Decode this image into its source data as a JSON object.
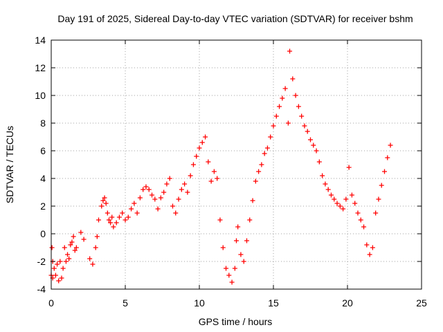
{
  "chart_data": {
    "type": "scatter",
    "title": "Day 191 of 2025, Sidereal Day-to-day VTEC variation (SDTVAR) for receiver bshm",
    "xlabel": "GPS time / hours",
    "ylabel": "SDTVAR / TECUs",
    "xlim": [
      0,
      25
    ],
    "ylim": [
      -4,
      14
    ],
    "xticks": [
      0,
      5,
      10,
      15,
      20,
      25
    ],
    "yticks": [
      -4,
      -2,
      0,
      2,
      4,
      6,
      8,
      10,
      12,
      14
    ],
    "grid": true,
    "marker": "plus",
    "color": "#ff0000",
    "series": [
      {
        "name": "SDTVAR",
        "x": [
          0.0,
          0.05,
          0.1,
          0.1,
          0.2,
          0.3,
          0.4,
          0.5,
          0.6,
          0.7,
          0.8,
          0.9,
          1.0,
          1.1,
          1.2,
          1.3,
          1.4,
          1.5,
          1.6,
          1.7,
          2.0,
          2.2,
          2.6,
          2.8,
          3.0,
          3.1,
          3.2,
          3.4,
          3.5,
          3.6,
          3.7,
          3.8,
          3.9,
          4.0,
          4.1,
          4.2,
          4.4,
          4.6,
          4.8,
          5.0,
          5.2,
          5.4,
          5.6,
          5.8,
          6.0,
          6.2,
          6.4,
          6.6,
          6.8,
          7.0,
          7.2,
          7.4,
          7.6,
          7.8,
          8.0,
          8.2,
          8.4,
          8.6,
          8.8,
          9.0,
          9.2,
          9.4,
          9.6,
          9.8,
          10.0,
          10.2,
          10.4,
          10.6,
          10.8,
          11.0,
          11.2,
          11.4,
          11.6,
          11.8,
          12.0,
          12.2,
          12.4,
          12.5,
          12.6,
          12.8,
          13.0,
          13.2,
          13.4,
          13.6,
          13.8,
          14.0,
          14.2,
          14.4,
          14.6,
          14.8,
          15.0,
          15.2,
          15.4,
          15.6,
          15.8,
          16.0,
          16.1,
          16.3,
          16.5,
          16.7,
          16.9,
          17.1,
          17.3,
          17.5,
          17.7,
          17.9,
          18.1,
          18.3,
          18.5,
          18.7,
          18.9,
          19.1,
          19.3,
          19.5,
          19.7,
          19.9,
          20.1,
          20.3,
          20.5,
          20.7,
          20.9,
          21.1,
          21.3,
          21.5,
          21.7,
          21.9,
          22.1,
          22.3,
          22.5,
          22.7,
          22.9
        ],
        "y": [
          -3.0,
          -1.0,
          -3.2,
          -2.0,
          -2.5,
          -3.0,
          -2.2,
          -3.4,
          -2.0,
          -3.2,
          -2.5,
          -1.0,
          -2.0,
          -1.5,
          -1.8,
          -0.8,
          -0.6,
          -0.2,
          -1.2,
          -1.0,
          0.1,
          -0.4,
          -1.8,
          -2.2,
          -1.0,
          -0.2,
          1.0,
          2.0,
          2.4,
          2.6,
          2.2,
          1.5,
          1.0,
          0.8,
          1.2,
          0.5,
          0.8,
          1.2,
          1.5,
          1.0,
          1.2,
          1.8,
          2.2,
          1.5,
          2.6,
          3.2,
          3.4,
          3.2,
          2.8,
          2.5,
          1.8,
          2.6,
          3.0,
          3.6,
          4.0,
          2.0,
          1.5,
          2.5,
          3.2,
          3.6,
          3.0,
          4.2,
          5.0,
          5.6,
          6.2,
          6.6,
          7.0,
          5.2,
          3.8,
          4.5,
          4.0,
          1.0,
          -1.0,
          -2.5,
          -3.0,
          -3.5,
          -2.5,
          -0.5,
          0.5,
          -1.5,
          -2.0,
          -0.5,
          1.0,
          2.4,
          3.8,
          4.5,
          5.0,
          5.8,
          6.2,
          7.0,
          7.8,
          8.5,
          9.2,
          9.8,
          10.5,
          8.0,
          13.2,
          11.2,
          10.0,
          9.2,
          8.5,
          7.8,
          7.4,
          6.8,
          6.4,
          6.0,
          5.2,
          4.2,
          3.6,
          3.2,
          2.8,
          2.5,
          2.2,
          2.0,
          1.8,
          2.5,
          4.8,
          2.8,
          2.2,
          1.5,
          1.0,
          0.5,
          -0.8,
          -1.5,
          -1.0,
          1.5,
          2.5,
          3.5,
          4.5,
          5.5,
          6.4
        ]
      }
    ]
  }
}
